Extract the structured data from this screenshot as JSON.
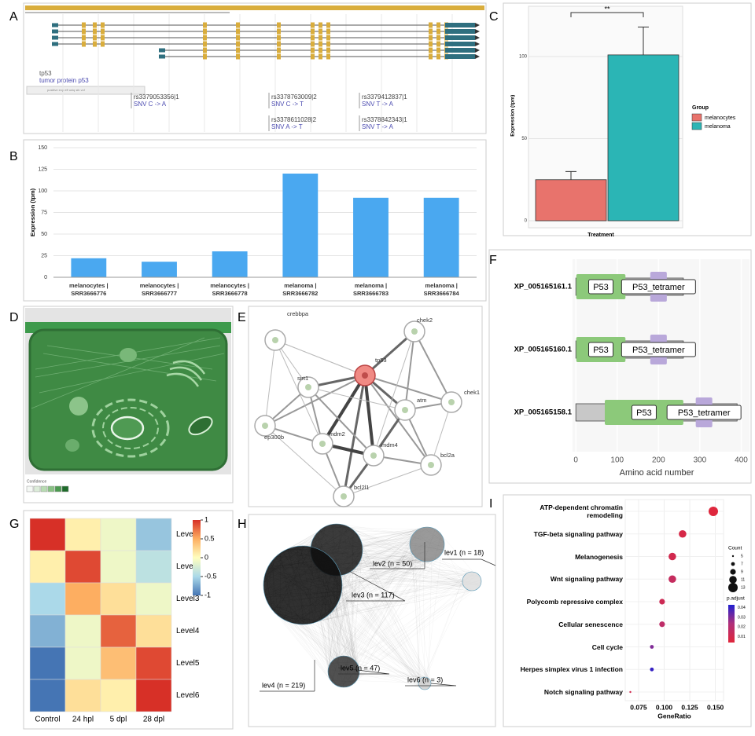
{
  "panel_labels": [
    "A",
    "B",
    "C",
    "D",
    "E",
    "F",
    "G",
    "H",
    "I"
  ],
  "genome_browser": {
    "gene_symbol": "tp53",
    "gene_name": "tumor protein p53",
    "track_label": "positive exp eff uniq sib vcf",
    "variants": [
      {
        "id": "rs3379053356|1",
        "change": "SNV C -> A"
      },
      {
        "id": "rs3378763009|2",
        "change": "SNV C -> T"
      },
      {
        "id": "rs3378611028|2",
        "change": "SNV A -> T"
      },
      {
        "id": "rs3379412837|1",
        "change": "SNV T -> A"
      },
      {
        "id": "rs3378842343|1",
        "change": "SNV T -> A"
      }
    ]
  },
  "cell_image": {
    "legend_label": "Confidence"
  },
  "network": {
    "nodes": [
      "crebbpa",
      "chek2",
      "sirt1",
      "tp53",
      "atm",
      "chek1",
      "ep300b",
      "mdm2",
      "mdm4",
      "bcl2a",
      "bcl2l1"
    ]
  },
  "levels": {
    "labels": [
      "lev1 (n = 18)",
      "lev2 (n = 50)",
      "lev3 (n = 117)",
      "lev4 (n = 219)",
      "lev5 (n = 47)",
      "lev6 (n = 3)"
    ]
  },
  "chart_data": [
    {
      "type": "bar",
      "y_label": "Expression (tpm)",
      "categories": [
        "melanocytes | SRR3666776",
        "melanocytes | SRR3666777",
        "melanocytes | SRR3666778",
        "melanoma | SRR3666782",
        "melanoma | SRR3666783",
        "melanoma | SRR3666784"
      ],
      "values": [
        22,
        18,
        30,
        120,
        92,
        92
      ],
      "color": "#4aa8f0",
      "ylim": [
        0,
        150
      ],
      "yticks": [
        0,
        25,
        50,
        75,
        100,
        125,
        150
      ],
      "grid": true
    },
    {
      "type": "bar",
      "x_label": "Treatment",
      "y_label": "Expression (tpm)",
      "legend_title": "Group",
      "annotation": "**",
      "categories": [
        "melanocytes",
        "melanoma"
      ],
      "values": [
        25,
        101
      ],
      "errors": [
        5,
        17
      ],
      "colors": [
        "#e8736c",
        "#2bb5b5"
      ],
      "ylim": [
        -4,
        132
      ],
      "yticks": [
        0,
        50,
        100
      ],
      "grid": true
    },
    {
      "type": "domain",
      "x_label": "Amino acid number",
      "xlim": [
        -8,
        420
      ],
      "xticks": [
        0,
        100,
        200,
        300,
        400
      ],
      "colors": {
        "protein": "#c8c8c8",
        "P53": "#8cc97a",
        "P53_tetramer": "#b9a8da"
      },
      "proteins": [
        {
          "name": "XP_005165161.1",
          "length": 260,
          "domains": [
            {
              "name": "P53",
              "start": 1,
              "end": 120
            },
            {
              "name": "P53_tetramer",
              "start": 180,
              "end": 220
            }
          ]
        },
        {
          "name": "XP_005165160.1",
          "length": 260,
          "domains": [
            {
              "name": "P53",
              "start": 1,
              "end": 120
            },
            {
              "name": "P53_tetramer",
              "start": 180,
              "end": 220
            }
          ]
        },
        {
          "name": "XP_005165158.1",
          "length": 390,
          "domains": [
            {
              "name": "P53",
              "start": 70,
              "end": 260
            },
            {
              "name": "P53_tetramer",
              "start": 290,
              "end": 330
            }
          ]
        }
      ]
    },
    {
      "type": "heatmap",
      "rows": [
        "Level1",
        "Level2",
        "Level3",
        "Level4",
        "Level5",
        "Level6"
      ],
      "columns": [
        "Control",
        "24 hpl",
        "5 dpl",
        "28 dpl"
      ],
      "values": [
        [
          1.0,
          0.1,
          -0.1,
          -0.6
        ],
        [
          0.1,
          0.9,
          -0.1,
          -0.4
        ],
        [
          -0.5,
          0.5,
          0.2,
          -0.1
        ],
        [
          -0.7,
          -0.1,
          0.8,
          0.2
        ],
        [
          -1.0,
          -0.1,
          0.4,
          0.9
        ],
        [
          -1.0,
          0.2,
          0.1,
          1.0
        ]
      ],
      "clim": [
        -1,
        1
      ],
      "colorscale": [
        "#4575b4",
        "#abd9e9",
        "#ffffbf",
        "#fdae61",
        "#d73027"
      ],
      "colorbar_ticks": [
        1,
        0.5,
        0,
        -0.5,
        -1
      ]
    },
    {
      "type": "dot",
      "x_label": "GeneRatio",
      "categories": [
        "ATP-dependent chromatin remodeling",
        "TGF-beta signaling pathway",
        "Melanogenesis",
        "Wnt signaling pathway",
        "Polycomb repressive complex",
        "Cellular senescence",
        "Cell cycle",
        "Herpes simplex virus 1 infection",
        "Notch signaling pathway"
      ],
      "values": [
        0.148,
        0.118,
        0.108,
        0.108,
        0.098,
        0.098,
        0.088,
        0.088,
        0.067
      ],
      "counts": [
        13,
        11,
        11,
        11,
        9,
        9,
        7,
        7,
        5
      ],
      "p_adjust": [
        0.005,
        0.008,
        0.01,
        0.015,
        0.012,
        0.018,
        0.03,
        0.04,
        0.01
      ],
      "xlim": [
        0.062,
        0.158
      ],
      "xticks": [
        0.075,
        {
          "value": 0.1,
          "label": "0.100"
        },
        0.125,
        {
          "value": 0.15,
          "label": "0.150"
        }
      ],
      "size_legend_title": "Count",
      "size_legend": [
        5,
        7,
        9,
        11,
        13
      ],
      "color_legend_title": "p.adjust",
      "color_legend": [
        0.04,
        0.03,
        0.02,
        0.01
      ],
      "clim": [
        0.004,
        0.043
      ],
      "colorscale": [
        "#e0263a",
        "#b0307a",
        "#2020d0"
      ]
    }
  ]
}
